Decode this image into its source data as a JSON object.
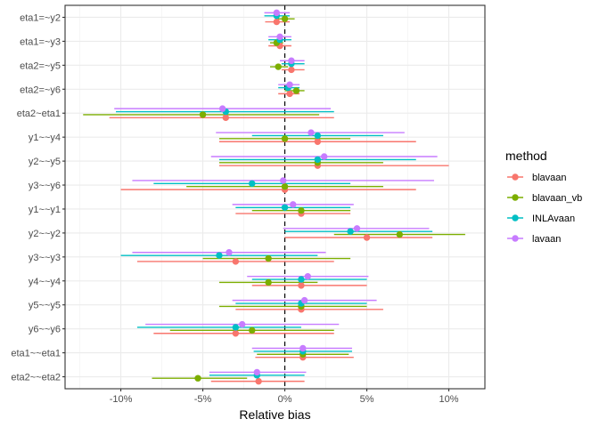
{
  "chart_data": {
    "type": "scatter",
    "subtype": "forest-plot (point-range, dodged)",
    "title": "",
    "xlabel": "Relative bias",
    "ylabel": "",
    "xlim": [
      -13.4,
      12.2
    ],
    "x_unit": "%",
    "x_ticks": [
      -10,
      -5,
      0,
      5,
      10
    ],
    "x_tick_labels": [
      "-10%",
      "-5%",
      "0%",
      "5%",
      "10%"
    ],
    "reference_line": {
      "x": 0,
      "style": "dashed"
    },
    "grid": true,
    "legend": {
      "title": "method",
      "position": "right"
    },
    "categories": [
      "eta1=~y2",
      "eta1=~y3",
      "eta2=~y5",
      "eta2=~y6",
      "eta2~eta1",
      "y1~~y4",
      "y2~~y5",
      "y3~~y6",
      "y1~~y1",
      "y2~~y2",
      "y3~~y3",
      "y4~~y4",
      "y5~~y5",
      "y6~~y6",
      "eta1~~eta1",
      "eta2~~eta2"
    ],
    "series": [
      {
        "name": "blavaan",
        "color": "#F8766D",
        "points": [
          -0.5,
          -0.3,
          0.4,
          0.3,
          -3.6,
          2.0,
          2.0,
          0.0,
          1.0,
          5.0,
          -3.0,
          1.0,
          1.0,
          -3.0,
          1.1,
          -1.6
        ],
        "lower": [
          -1.2,
          -1.0,
          -0.2,
          -0.4,
          -10.7,
          -4.0,
          -4.0,
          -10.0,
          -3.0,
          0.0,
          -9.0,
          -2.0,
          -3.0,
          -8.0,
          -1.8,
          -4.5
        ],
        "upper": [
          0.3,
          0.4,
          1.2,
          0.9,
          3.0,
          8.0,
          10.0,
          8.0,
          4.0,
          9.0,
          3.0,
          5.0,
          6.0,
          3.0,
          4.2,
          1.2
        ]
      },
      {
        "name": "blavaan_vb",
        "color": "#7CAE00",
        "points": [
          0.0,
          -0.5,
          -0.4,
          0.7,
          -5.0,
          0.0,
          2.0,
          0.0,
          1.0,
          7.0,
          -1.0,
          -1.0,
          1.0,
          -2.0,
          1.1,
          -5.3
        ],
        "lower": [
          -0.6,
          -0.9,
          -0.9,
          0.0,
          -12.3,
          -4.0,
          -4.0,
          -6.0,
          -2.0,
          3.0,
          -5.0,
          -4.0,
          -4.0,
          -7.0,
          -1.7,
          -8.1
        ],
        "upper": [
          0.6,
          -0.1,
          0.2,
          1.2,
          2.1,
          4.0,
          6.0,
          6.0,
          4.0,
          11.0,
          4.0,
          2.0,
          5.0,
          3.0,
          3.9,
          -2.3
        ]
      },
      {
        "name": "INLAvaan",
        "color": "#00BFC4",
        "points": [
          -0.5,
          -0.3,
          0.4,
          0.2,
          -3.6,
          2.0,
          2.0,
          -2.0,
          0.0,
          4.0,
          -4.0,
          1.0,
          1.0,
          -3.0,
          1.1,
          -1.7
        ],
        "lower": [
          -1.25,
          -1.0,
          -0.2,
          -0.4,
          -10.3,
          -2.0,
          -4.0,
          -8.0,
          -3.0,
          0.0,
          -10.0,
          -2.0,
          -3.0,
          -9.0,
          -1.9,
          -4.6
        ],
        "upper": [
          0.3,
          0.4,
          1.2,
          0.9,
          3.0,
          6.0,
          8.0,
          4.0,
          4.0,
          9.0,
          2.0,
          5.0,
          5.0,
          1.0,
          4.1,
          1.2
        ]
      },
      {
        "name": "lavaan",
        "color": "#C77CFF",
        "points": [
          -0.5,
          -0.3,
          0.4,
          0.3,
          -3.8,
          1.6,
          2.4,
          -0.1,
          0.5,
          4.4,
          -3.4,
          1.4,
          1.2,
          -2.6,
          1.1,
          -1.7
        ],
        "lower": [
          -1.25,
          -1.0,
          -0.3,
          -0.4,
          -10.4,
          -4.2,
          -4.5,
          -9.3,
          -3.2,
          -0.1,
          -9.3,
          -2.3,
          -3.2,
          -8.5,
          -2.0,
          -4.6
        ],
        "upper": [
          0.3,
          0.4,
          1.2,
          0.9,
          2.8,
          7.3,
          9.3,
          9.1,
          4.2,
          8.8,
          2.5,
          5.1,
          5.6,
          3.3,
          4.1,
          1.3
        ]
      }
    ]
  }
}
